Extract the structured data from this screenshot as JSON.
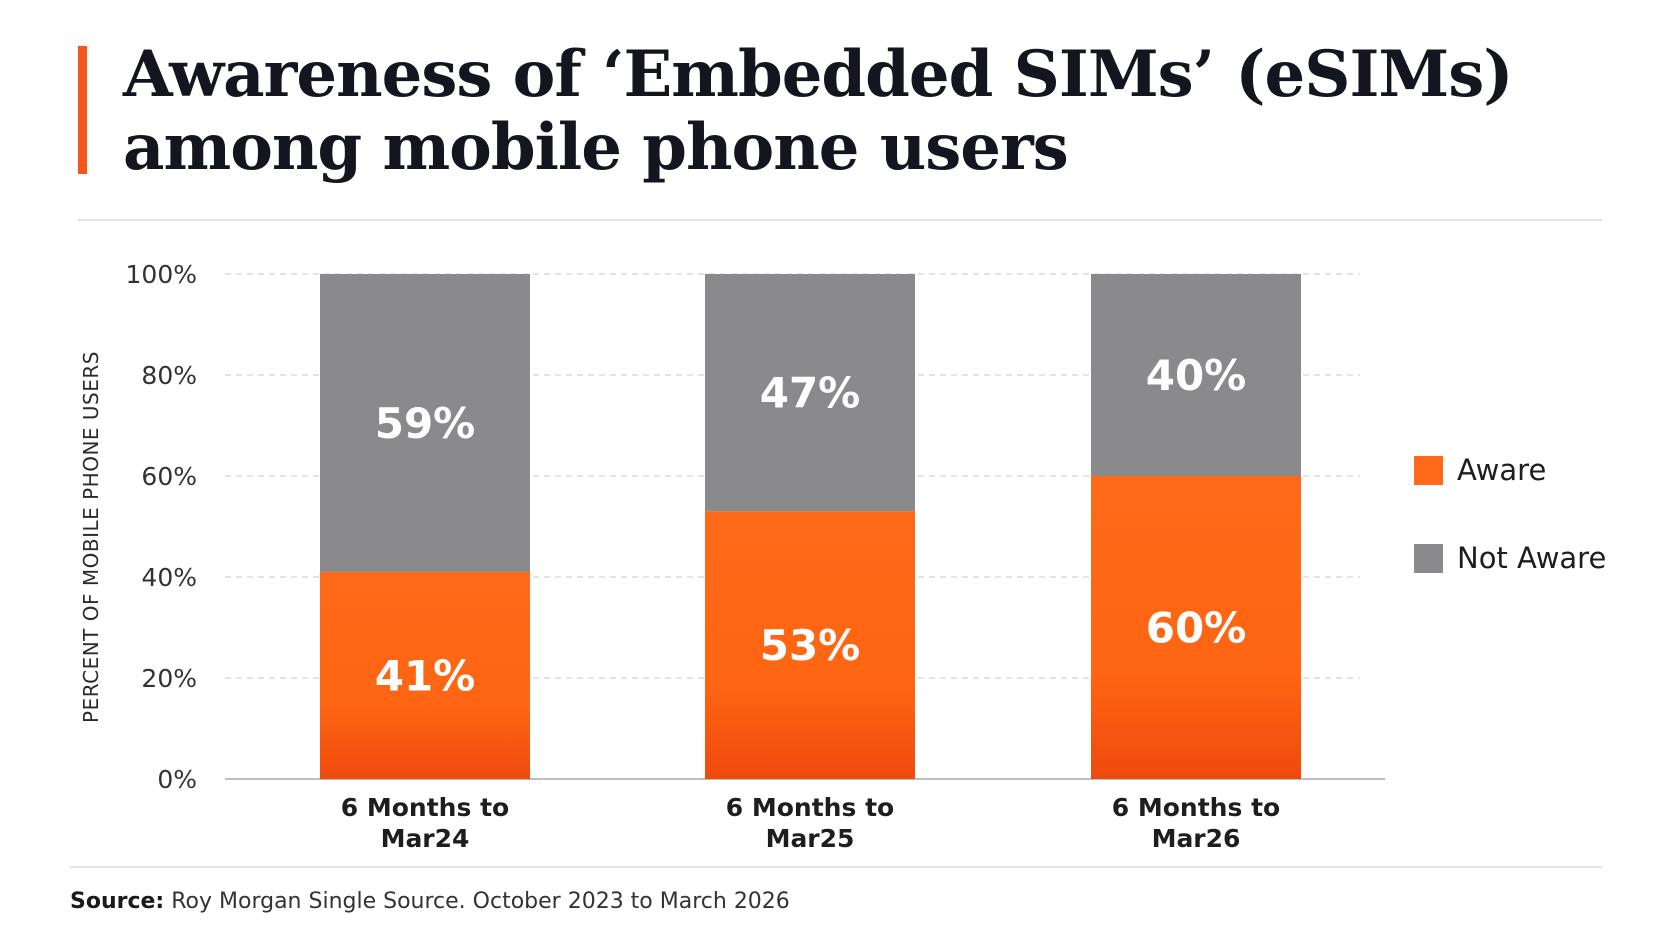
{
  "title_line1": "Awareness of ‘Embedded SIMs’ (eSIMs)",
  "title_line2": "among mobile phone users",
  "source_label": "Source:",
  "source_text": "Roy Morgan Single Source. October 2023 to March 2026",
  "colors": {
    "accent": "#f2581d",
    "aware": "#ff6a1a",
    "aware_dark": "#f04d10",
    "not_aware": "#8a898b"
  },
  "chart_data": {
    "type": "bar",
    "stacked": true,
    "ylabel": "PERCENT OF MOBILE PHONE USERS",
    "ylim": [
      0,
      100
    ],
    "yticks": [
      "0%",
      "20%",
      "40%",
      "60%",
      "80%",
      "100%"
    ],
    "grid": true,
    "legend_position": "right",
    "categories": [
      [
        "6 Months to",
        "Mar24"
      ],
      [
        "6 Months to",
        "Mar25"
      ],
      [
        "6 Months to",
        "Mar26"
      ]
    ],
    "series": [
      {
        "name": "Aware",
        "values": [
          41,
          53,
          60
        ],
        "labels": [
          "41%",
          "53%",
          "60%"
        ]
      },
      {
        "name": "Not Aware",
        "values": [
          59,
          47,
          40
        ],
        "labels": [
          "59%",
          "47%",
          "40%"
        ]
      }
    ]
  }
}
